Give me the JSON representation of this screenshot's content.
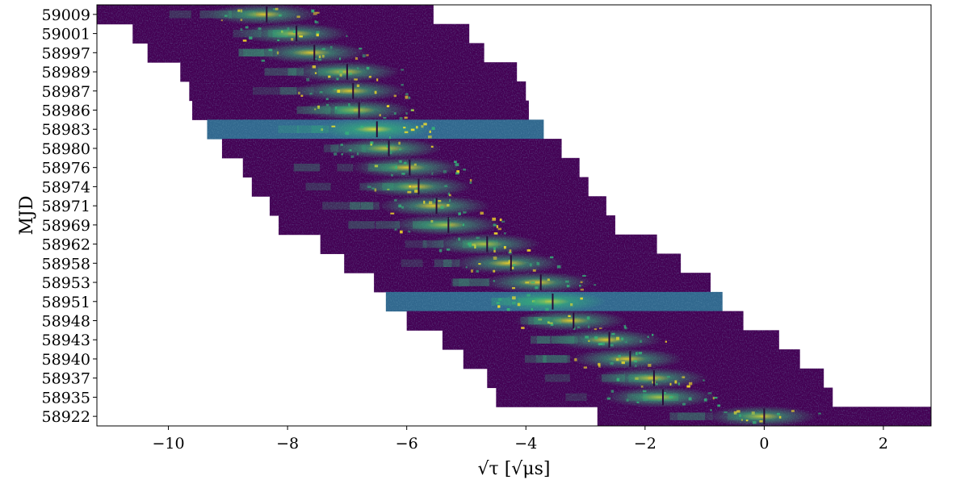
{
  "chart_data": {
    "type": "heatmap",
    "title": "",
    "xlabel": "√τ [√μs]",
    "ylabel": "MJD",
    "xlim": [
      -11.2,
      2.8
    ],
    "x_ticks": [
      -10,
      -8,
      -6,
      -4,
      -2,
      0,
      2
    ],
    "x_tick_labels": [
      "−10",
      "−8",
      "−6",
      "−4",
      "−2",
      "0",
      "2"
    ],
    "grid": false,
    "colormap": "viridis",
    "colors": {
      "low": "#440154",
      "mid_low": "#31688e",
      "mid": "#35b779",
      "high": "#fde725"
    },
    "rows": [
      {
        "mjd": "59009",
        "x_start": -11.2,
        "x_end": -5.55,
        "arc_center": -8.35,
        "background": "low"
      },
      {
        "mjd": "59001",
        "x_start": -10.6,
        "x_end": -4.95,
        "arc_center": -7.85,
        "background": "low"
      },
      {
        "mjd": "58997",
        "x_start": -10.35,
        "x_end": -4.7,
        "arc_center": -7.55,
        "background": "low"
      },
      {
        "mjd": "58989",
        "x_start": -9.8,
        "x_end": -4.15,
        "arc_center": -7.0,
        "background": "low"
      },
      {
        "mjd": "58987",
        "x_start": -9.65,
        "x_end": -4.0,
        "arc_center": -6.9,
        "background": "low"
      },
      {
        "mjd": "58986",
        "x_start": -9.6,
        "x_end": -3.95,
        "arc_center": -6.8,
        "background": "low"
      },
      {
        "mjd": "58983",
        "x_start": -9.35,
        "x_end": -3.7,
        "arc_center": -6.5,
        "background": "mid_low"
      },
      {
        "mjd": "58980",
        "x_start": -9.1,
        "x_end": -3.4,
        "arc_center": -6.3,
        "background": "low"
      },
      {
        "mjd": "58976",
        "x_start": -8.75,
        "x_end": -3.1,
        "arc_center": -5.95,
        "background": "low"
      },
      {
        "mjd": "58974",
        "x_start": -8.6,
        "x_end": -2.95,
        "arc_center": -5.8,
        "background": "low"
      },
      {
        "mjd": "58971",
        "x_start": -8.3,
        "x_end": -2.65,
        "arc_center": -5.5,
        "background": "low"
      },
      {
        "mjd": "58969",
        "x_start": -8.15,
        "x_end": -2.5,
        "arc_center": -5.3,
        "background": "low"
      },
      {
        "mjd": "58962",
        "x_start": -7.45,
        "x_end": -1.8,
        "arc_center": -4.65,
        "background": "low"
      },
      {
        "mjd": "58958",
        "x_start": -7.05,
        "x_end": -1.4,
        "arc_center": -4.25,
        "background": "low"
      },
      {
        "mjd": "58953",
        "x_start": -6.55,
        "x_end": -0.9,
        "arc_center": -3.75,
        "background": "low"
      },
      {
        "mjd": "58951",
        "x_start": -6.35,
        "x_end": -0.7,
        "arc_center": -3.55,
        "background": "mid_low"
      },
      {
        "mjd": "58948",
        "x_start": -6.0,
        "x_end": -0.35,
        "arc_center": -3.2,
        "background": "low"
      },
      {
        "mjd": "58943",
        "x_start": -5.4,
        "x_end": 0.25,
        "arc_center": -2.6,
        "background": "low"
      },
      {
        "mjd": "58940",
        "x_start": -5.05,
        "x_end": 0.6,
        "arc_center": -2.25,
        "background": "low"
      },
      {
        "mjd": "58937",
        "x_start": -4.65,
        "x_end": 1.0,
        "arc_center": -1.85,
        "background": "low"
      },
      {
        "mjd": "58935",
        "x_start": -4.5,
        "x_end": 1.15,
        "arc_center": -1.7,
        "background": "low"
      },
      {
        "mjd": "58922",
        "x_start": -2.8,
        "x_end": 2.8,
        "arc_center": 0.0,
        "background": "low"
      }
    ]
  }
}
